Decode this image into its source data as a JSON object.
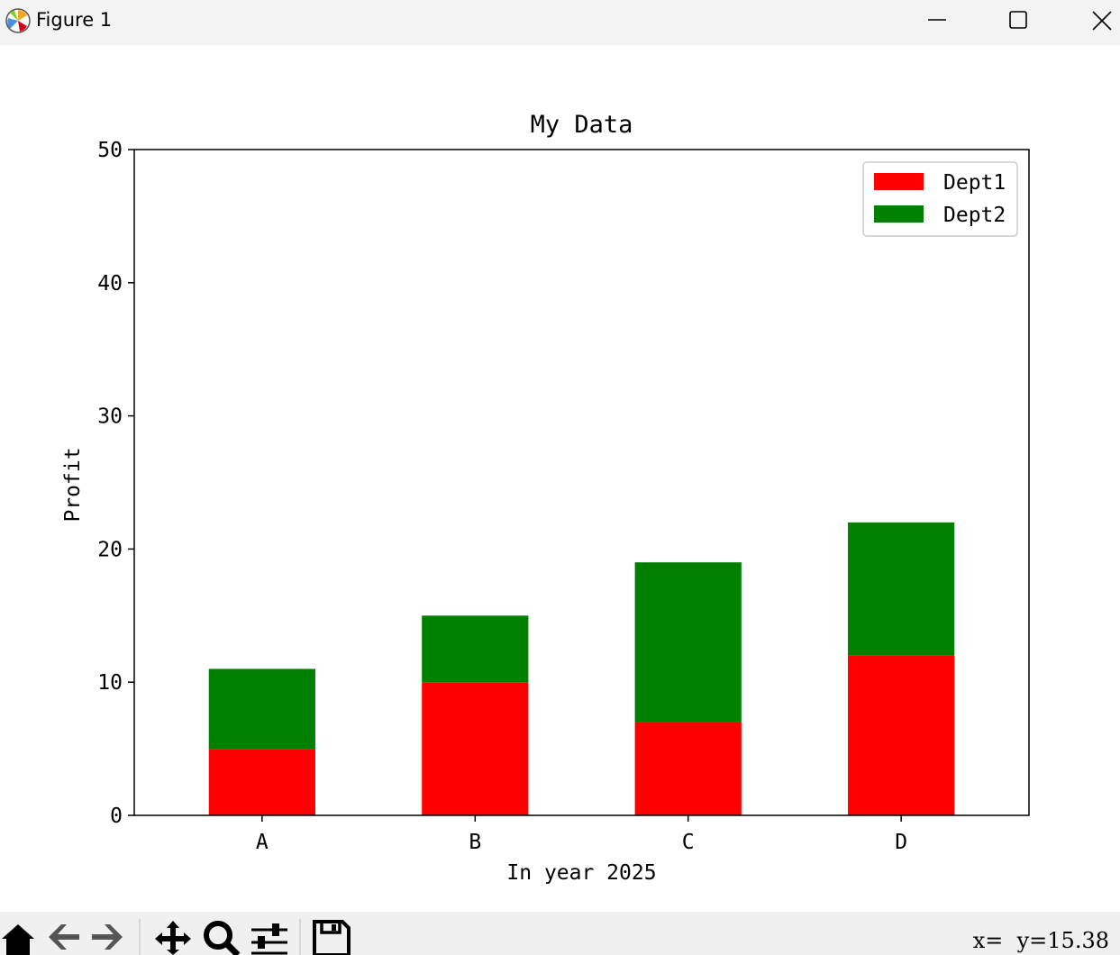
{
  "window": {
    "title": "Figure 1",
    "icon": "matplotlib-logo-icon",
    "controls": [
      "minimize-icon",
      "maximize-icon",
      "close-icon"
    ]
  },
  "chart_data": {
    "type": "bar",
    "stacked": true,
    "title": "My Data",
    "xlabel": "In year 2025",
    "ylabel": "Profit",
    "categories": [
      "A",
      "B",
      "C",
      "D"
    ],
    "series": [
      {
        "name": "Dept1",
        "values": [
          5,
          10,
          7,
          12
        ],
        "color": "#ff0000"
      },
      {
        "name": "Dept2",
        "values": [
          6,
          5,
          12,
          10
        ],
        "color": "#008000"
      }
    ],
    "ylim": [
      0,
      50
    ],
    "yticks": [
      0,
      10,
      20,
      30,
      40,
      50
    ],
    "legend_position": "top-right",
    "grid": false
  },
  "toolbar": {
    "buttons": [
      "home-icon",
      "back-icon",
      "forward-icon",
      "pan-icon",
      "zoom-icon",
      "configure-subplots-icon",
      "save-icon"
    ],
    "coordinates": "x=  y=15.38"
  }
}
